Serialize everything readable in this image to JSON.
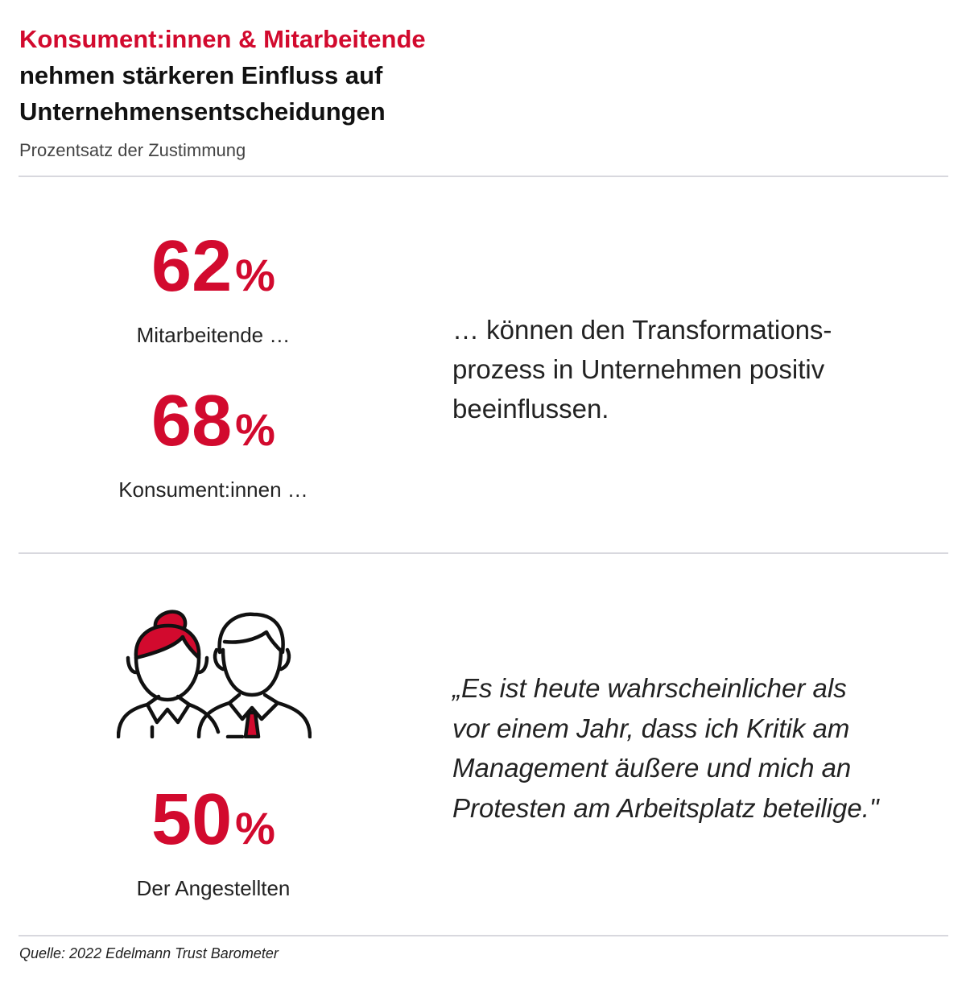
{
  "header": {
    "title_accent": "Konsument:innen & Mitarbeitende",
    "title_line2": "nehmen stärkeren Einfluss auf",
    "title_line3": "Unternehmensentscheidungen",
    "subtitle": "Prozentsatz der Zustimmung"
  },
  "stats": [
    {
      "value": "62",
      "unit": "%",
      "label": "Mitarbeitende …"
    },
    {
      "value": "68",
      "unit": "%",
      "label": "Konsument:innen …"
    },
    {
      "value": "50",
      "unit": "%",
      "label": "Der Angestellten"
    }
  ],
  "statement": {
    "line1": "… können den Transformations-",
    "line2": "prozess in Unternehmen positiv",
    "line3": "beeinflussen."
  },
  "quote": {
    "line1": "„Es ist heute wahrscheinlicher als",
    "line2": "vor einem Jahr, dass ich Kritik am",
    "line3": "Management äußere und mich an",
    "line4": "Protesten am Arbeitsplatz beteilige.\""
  },
  "icon": {
    "name": "two-people-icon"
  },
  "colors": {
    "accent": "#d20a2e",
    "rule": "#d8d8de",
    "text": "#1a1a1a"
  },
  "footer": {
    "source": "Quelle: 2022 Edelmann Trust Barometer"
  }
}
